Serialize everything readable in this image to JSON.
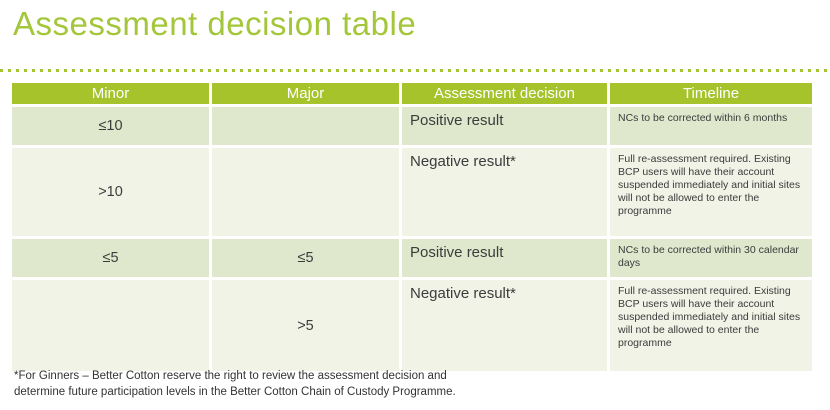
{
  "title": "Assessment decision table",
  "theme": {
    "brand_green": "#a6c32c",
    "title_green": "#a3c63a",
    "row_shaded_bg": "#dfe8cd",
    "row_plain_bg": "#f0f3e6",
    "header_text": "#ffffff",
    "body_text": "#3c3c3c"
  },
  "table": {
    "columns": [
      "Minor",
      "Major",
      "Assessment decision",
      "Timeline"
    ],
    "rows": [
      {
        "minor": "≤10",
        "major": "",
        "decision": "Positive result",
        "timeline": "NCs to be corrected within 6 months"
      },
      {
        "minor": ">10",
        "major": "",
        "decision": "Negative result*",
        "timeline": "Full re-assessment required. Existing BCP users will have their account suspended immediately and initial sites will not be allowed to enter the programme"
      },
      {
        "minor": "≤5",
        "major": "≤5",
        "decision": "Positive result",
        "timeline": "NCs to be corrected within 30 calendar days"
      },
      {
        "minor": "",
        "major": ">5",
        "decision": "Negative result*",
        "timeline": "Full re-assessment required. Existing BCP users will have their account suspended immediately and initial sites will not be allowed to enter the programme"
      }
    ]
  },
  "footnote": "*For Ginners – Better Cotton reserve the right to review the assessment decision and determine future participation levels in the Better Cotton Chain of Custody Programme."
}
